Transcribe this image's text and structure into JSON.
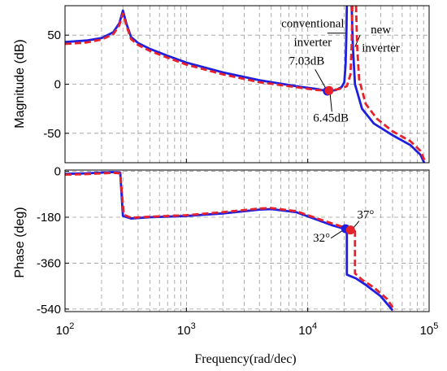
{
  "chart_data": {
    "type": "line",
    "x_label": "Frequency(rad/dec)",
    "x_scale": "log",
    "xlim": [
      100,
      100000
    ],
    "x_ticks": [
      {
        "value": 100,
        "base": "10",
        "exp": "2"
      },
      {
        "value": 1000,
        "base": "10",
        "exp": "3"
      },
      {
        "value": 10000,
        "base": "10",
        "exp": "4"
      },
      {
        "value": 100000,
        "base": "10",
        "exp": "5"
      }
    ],
    "grid": true,
    "series_colors": {
      "conventional": "#1f1fe0",
      "new": "#e8222a"
    },
    "panels": [
      {
        "id": "magnitude",
        "ylabel": "Magnitude (dB)",
        "ylim": [
          -80,
          80
        ],
        "yticks": [
          50,
          0,
          -50
        ],
        "series": [
          {
            "id": "conventional",
            "points": [
              [
                100,
                43
              ],
              [
                150,
                44.5
              ],
              [
                200,
                47
              ],
              [
                250,
                53
              ],
              [
                280,
                62
              ],
              [
                300,
                75
              ],
              [
                320,
                62
              ],
              [
                350,
                48
              ],
              [
                400,
                42
              ],
              [
                500,
                36
              ],
              [
                700,
                29
              ],
              [
                1000,
                22
              ],
              [
                2000,
                12
              ],
              [
                4000,
                4
              ],
              [
                8000,
                -2
              ],
              [
                12000,
                -5
              ],
              [
                14500,
                -7.03
              ],
              [
                17000,
                -6
              ],
              [
                19000,
                -3
              ],
              [
                20000,
                2
              ],
              [
                20500,
                20
              ],
              [
                20800,
                50
              ],
              [
                21000,
                80
              ]
            ]
          },
          {
            "id": "conventional",
            "points": [
              [
                23000,
                80
              ],
              [
                23500,
                40
              ],
              [
                24500,
                0
              ],
              [
                28000,
                -25
              ],
              [
                35000,
                -40
              ],
              [
                50000,
                -52
              ],
              [
                70000,
                -62
              ],
              [
                85000,
                -72
              ],
              [
                95000,
                -85
              ]
            ]
          },
          {
            "id": "new",
            "points": [
              [
                100,
                41
              ],
              [
                150,
                42.5
              ],
              [
                200,
                45.5
              ],
              [
                250,
                51
              ],
              [
                280,
                60
              ],
              [
                300,
                72
              ],
              [
                320,
                60
              ],
              [
                350,
                46
              ],
              [
                400,
                40
              ],
              [
                500,
                34
              ],
              [
                700,
                27
              ],
              [
                1000,
                20
              ],
              [
                2000,
                10
              ],
              [
                4000,
                2
              ],
              [
                8000,
                -3
              ],
              [
                12000,
                -6
              ],
              [
                15000,
                -6.45
              ],
              [
                18000,
                -5
              ],
              [
                21000,
                -2
              ],
              [
                22500,
                10
              ],
              [
                23000,
                40
              ],
              [
                23300,
                80
              ]
            ]
          },
          {
            "id": "new",
            "points": [
              [
                25000,
                80
              ],
              [
                25500,
                40
              ],
              [
                26500,
                5
              ],
              [
                30000,
                -20
              ],
              [
                37000,
                -35
              ],
              [
                50000,
                -48
              ],
              [
                70000,
                -58
              ],
              [
                85000,
                -68
              ],
              [
                95000,
                -82
              ]
            ]
          }
        ],
        "markers": [
          {
            "series": "conventional",
            "x": 14500,
            "y": -7.03
          },
          {
            "series": "new",
            "x": 15000,
            "y": -6.45
          }
        ],
        "annotations": [
          {
            "text": "conventional",
            "x": 11000,
            "y": 58
          },
          {
            "text": "inverter",
            "x": 11000,
            "y": 39
          },
          {
            "text": "new",
            "x": 40000,
            "y": 52
          },
          {
            "text": "inverter",
            "x": 40000,
            "y": 33
          },
          {
            "text": "7.03dB",
            "x": 9800,
            "y": 20
          },
          {
            "text": "6.45dB",
            "x": 15500,
            "y": -38
          }
        ]
      },
      {
        "id": "phase",
        "ylabel": "Phase (deg)",
        "ylim": [
          -550,
          5
        ],
        "yticks": [
          0,
          -180,
          -360,
          -540
        ],
        "series": [
          {
            "id": "conventional",
            "points": [
              [
                100,
                -10
              ],
              [
                150,
                -8
              ],
              [
                200,
                -5
              ],
              [
                250,
                -3
              ],
              [
                285,
                -5
              ],
              [
                300,
                -175
              ],
              [
                350,
                -185
              ],
              [
                500,
                -180
              ],
              [
                1000,
                -175
              ],
              [
                2000,
                -165
              ],
              [
                4000,
                -150
              ],
              [
                5000,
                -148
              ],
              [
                8000,
                -160
              ],
              [
                12000,
                -190
              ],
              [
                16000,
                -212
              ],
              [
                20000,
                -225
              ],
              [
                21000,
                -228
              ],
              [
                21000,
                -405
              ],
              [
                25000,
                -420
              ],
              [
                30000,
                -445
              ],
              [
                40000,
                -490
              ],
              [
                50000,
                -545
              ]
            ]
          },
          {
            "id": "new",
            "points": [
              [
                100,
                -13
              ],
              [
                150,
                -11
              ],
              [
                200,
                -8
              ],
              [
                250,
                -6
              ],
              [
                285,
                -8
              ],
              [
                305,
                -170
              ],
              [
                350,
                -182
              ],
              [
                500,
                -178
              ],
              [
                1000,
                -172
              ],
              [
                2000,
                -160
              ],
              [
                4000,
                -146
              ],
              [
                5000,
                -144
              ],
              [
                8000,
                -156
              ],
              [
                12000,
                -185
              ],
              [
                16000,
                -205
              ],
              [
                20000,
                -220
              ],
              [
                23000,
                -228
              ],
              [
                24500,
                -235
              ],
              [
                24500,
                -400
              ],
              [
                28000,
                -425
              ],
              [
                35000,
                -455
              ],
              [
                45000,
                -500
              ],
              [
                52000,
                -545
              ]
            ]
          }
        ],
        "markers": [
          {
            "series": "conventional",
            "x": 20500,
            "y": -225
          },
          {
            "series": "new",
            "x": 22500,
            "y": -230
          }
        ],
        "annotations": [
          {
            "text": "37°",
            "x": 30000,
            "y": -185
          },
          {
            "text": "32°",
            "x": 13000,
            "y": -275
          }
        ]
      }
    ]
  }
}
